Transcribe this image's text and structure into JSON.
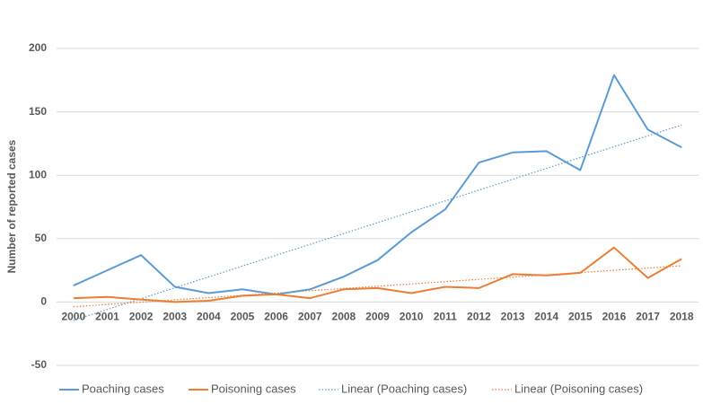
{
  "chart_data": {
    "type": "line",
    "y_label": "Number of reported cases",
    "categories": [
      "2000",
      "2001",
      "2002",
      "2003",
      "2004",
      "2005",
      "2006",
      "2007",
      "2008",
      "2009",
      "2010",
      "2011",
      "2012",
      "2013",
      "2014",
      "2015",
      "2016",
      "2017",
      "2018"
    ],
    "series": [
      {
        "name": "Poaching cases",
        "color": "#5b9bd5",
        "values": [
          13,
          25,
          37,
          12,
          7,
          10,
          6,
          10,
          20,
          33,
          55,
          73,
          110,
          118,
          119,
          104,
          179,
          136,
          122
        ]
      },
      {
        "name": "Poisoning cases",
        "color": "#ed7d31",
        "values": [
          3,
          4,
          2,
          0,
          1,
          5,
          6,
          3,
          10,
          11,
          7,
          12,
          11,
          22,
          21,
          23,
          43,
          19,
          34
        ]
      }
    ],
    "trendlines": [
      {
        "name": "Linear (Poaching cases)",
        "series": 0
      },
      {
        "name": "Linear (Poisoning cases)",
        "series": 1
      }
    ],
    "ylim": [
      -50,
      200
    ],
    "yticks": [
      -50,
      0,
      50,
      100,
      150,
      200
    ],
    "grid": true
  }
}
